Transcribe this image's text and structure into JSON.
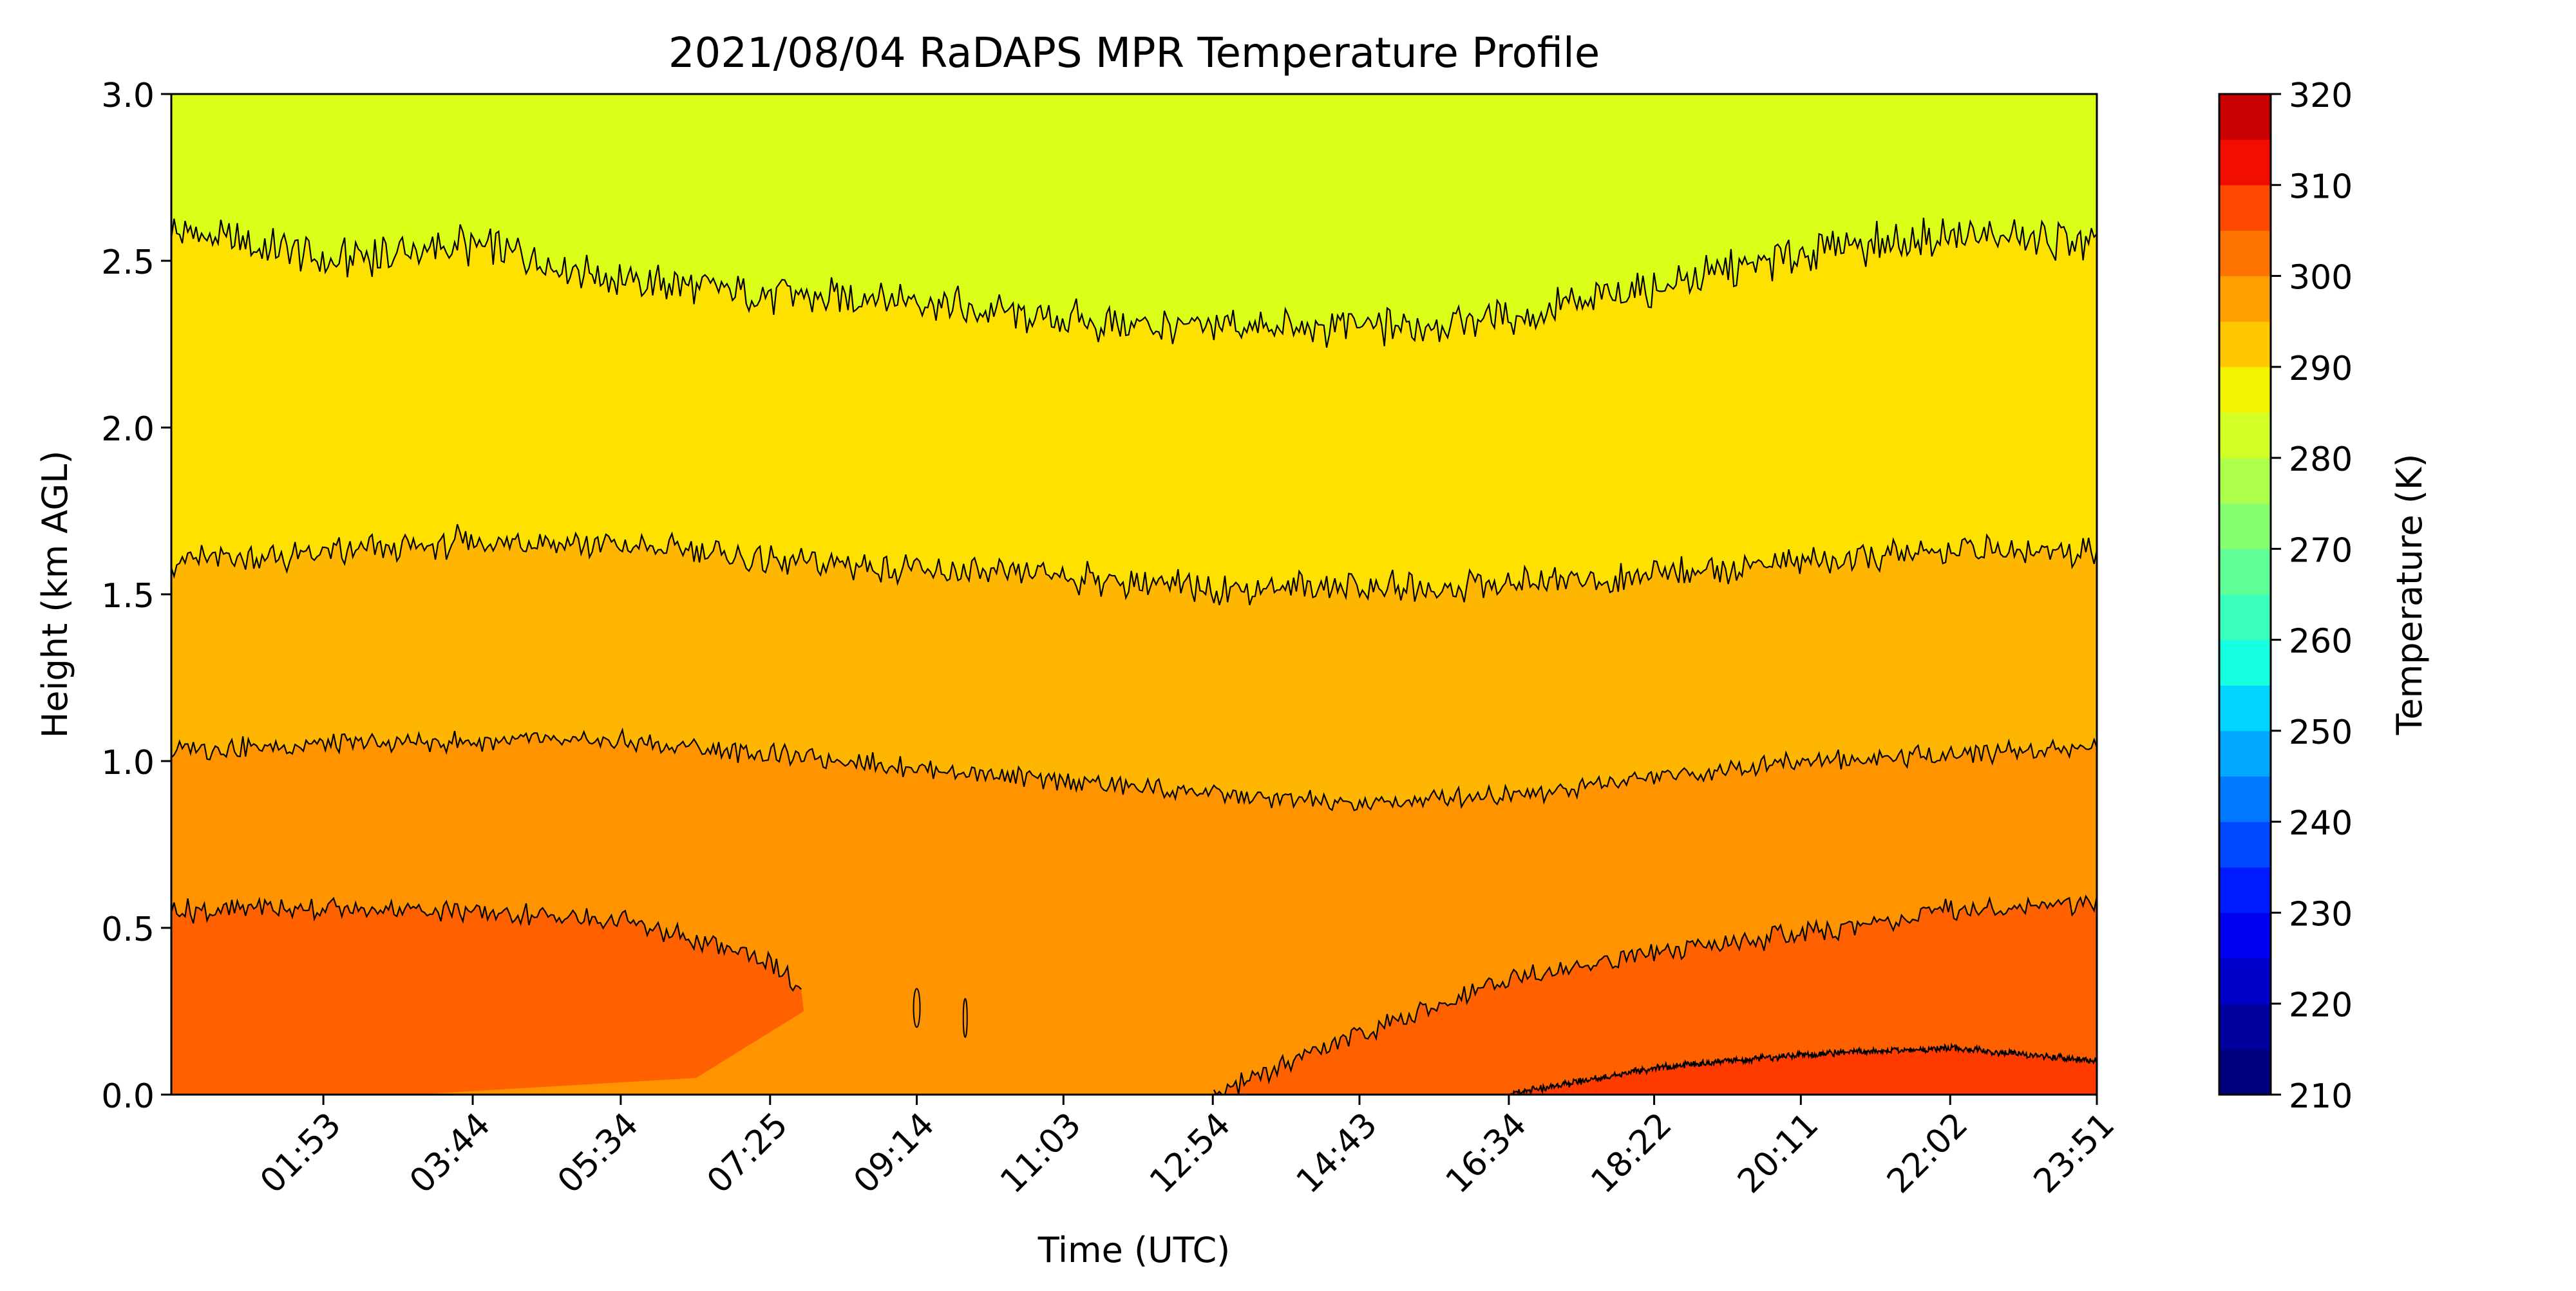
{
  "chart_data": {
    "type": "heatmap",
    "subtype": "filled-contour",
    "title": "2021/08/04 RaDAPS MPR Temperature Profile",
    "xlabel": "Time (UTC)",
    "ylabel": "Height (km AGL)",
    "ylim": [
      0,
      3
    ],
    "xlim": [
      "00:00",
      "23:51"
    ],
    "x_ticks": [
      "01:53",
      "03:44",
      "05:34",
      "07:25",
      "09:14",
      "11:03",
      "12:54",
      "14:43",
      "16:34",
      "18:22",
      "20:11",
      "22:02",
      "23:51"
    ],
    "y_ticks": [
      "0.0",
      "0.5",
      "1.0",
      "1.5",
      "2.0",
      "2.5",
      "3.0"
    ],
    "grid": false,
    "colorbar": {
      "label": "Temperature (K)",
      "min": 210,
      "max": 320,
      "ticks": [
        "210",
        "220",
        "230",
        "240",
        "250",
        "260",
        "270",
        "280",
        "290",
        "300",
        "310",
        "320"
      ],
      "levels": [
        210,
        215,
        220,
        225,
        230,
        235,
        240,
        245,
        250,
        255,
        260,
        265,
        270,
        275,
        280,
        285,
        290,
        295,
        300,
        305,
        310,
        315,
        320
      ],
      "colors": [
        "#00007f",
        "#0000b2",
        "#0000e8",
        "#0024ff",
        "#0058ff",
        "#0090ff",
        "#00c4ff",
        "#0cf4ea",
        "#39ffbd",
        "#69ff8d",
        "#96ff60",
        "#c4ff33",
        "#f4f802",
        "#ffc400",
        "#ff9400",
        "#ff6000",
        "#ff2d00",
        "#e80000",
        "#b20000",
        "#7f0000",
        "#ff2d00",
        "#e80000"
      ]
    },
    "bands": [
      {
        "range_K": [
          300,
          305
        ],
        "color": "#ff6000"
      },
      {
        "range_K": [
          305,
          310
        ],
        "color": "#ff3b00"
      },
      {
        "range_K": [
          295,
          300
        ],
        "color": "#ff9400"
      },
      {
        "range_K": [
          290,
          295
        ],
        "color": "#ffb600"
      },
      {
        "range_K": [
          285,
          290
        ],
        "color": "#ffe100"
      },
      {
        "range_K": [
          280,
          285
        ],
        "color": "#dbff19"
      }
    ],
    "contour_heights_km": [
      {
        "level_K": 280,
        "x": [
          "00:00",
          "01:53",
          "03:44",
          "05:34",
          "07:25",
          "09:14",
          "11:03",
          "12:54",
          "14:43",
          "16:34",
          "18:22",
          "20:11",
          "22:02",
          "23:51"
        ],
        "y": [
          2.6,
          2.5,
          2.55,
          2.45,
          2.4,
          2.38,
          2.32,
          2.3,
          2.3,
          2.33,
          2.42,
          2.52,
          2.58,
          2.55
        ]
      },
      {
        "level_K": 285,
        "x": [
          "00:00",
          "01:53",
          "03:44",
          "05:34",
          "07:25",
          "09:14",
          "11:03",
          "12:54",
          "14:43",
          "16:34",
          "18:22",
          "20:11",
          "22:02",
          "23:51"
        ],
        "y": [
          1.6,
          1.62,
          1.66,
          1.65,
          1.6,
          1.57,
          1.55,
          1.52,
          1.52,
          1.53,
          1.56,
          1.6,
          1.62,
          1.64
        ]
      },
      {
        "level_K": 290,
        "x": [
          "00:00",
          "01:53",
          "03:44",
          "05:34",
          "07:25",
          "09:14",
          "11:03",
          "12:54",
          "14:43",
          "16:34",
          "18:22",
          "20:11",
          "22:02",
          "23:51"
        ],
        "y": [
          1.03,
          1.05,
          1.06,
          1.06,
          1.02,
          0.98,
          0.94,
          0.9,
          0.87,
          0.9,
          0.95,
          1.0,
          1.02,
          1.05
        ]
      },
      {
        "level_K": 295,
        "x": [
          "00:00",
          "01:53",
          "03:44",
          "05:34",
          "07:25",
          "09:14",
          "11:03",
          "12:54",
          "14:43",
          "16:34",
          "18:22",
          "20:11",
          "22:02",
          "23:51"
        ],
        "y": [
          0.55,
          0.56,
          0.55,
          0.52,
          0.4,
          0.0,
          0.0,
          0.0,
          0.18,
          0.35,
          0.43,
          0.48,
          0.55,
          0.58
        ]
      },
      {
        "level_K": 300,
        "x": [
          "16:34",
          "18:22",
          "20:11",
          "22:02",
          "23:51"
        ],
        "y": [
          0.0,
          0.08,
          0.12,
          0.14,
          0.1
        ]
      }
    ]
  }
}
